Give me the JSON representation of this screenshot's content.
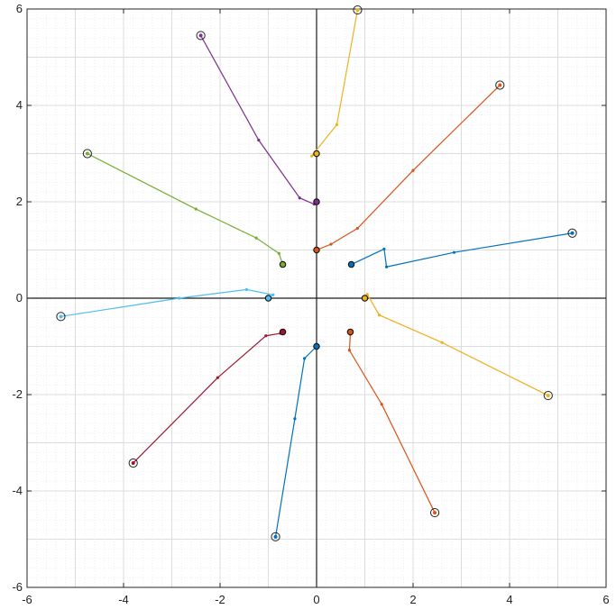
{
  "chart_data": {
    "type": "line",
    "title": "",
    "xlabel": "",
    "ylabel": "",
    "xlim": [
      -6,
      6
    ],
    "ylim": [
      -6,
      6
    ],
    "grid": "on-with-minor",
    "axis_lines_through_origin": true,
    "xticks": [
      "-6",
      "-4",
      "-2",
      "0",
      "2",
      "4",
      "6"
    ],
    "yticks": [
      "-6",
      "-4",
      "-2",
      "0",
      "2",
      "4",
      "6"
    ],
    "series": [
      {
        "color": "#0072BD",
        "points": [
          [
            0.72,
            0.7
          ],
          [
            1.4,
            1.02
          ],
          [
            1.45,
            0.65
          ],
          [
            2.85,
            0.95
          ],
          [
            5.3,
            1.35
          ]
        ]
      },
      {
        "color": "#D95319",
        "points": [
          [
            0.0,
            1.0
          ],
          [
            0.3,
            1.12
          ],
          [
            0.85,
            1.45
          ],
          [
            2.0,
            2.65
          ],
          [
            3.8,
            4.42
          ]
        ]
      },
      {
        "color": "#EDB120",
        "points": [
          [
            0.0,
            3.0
          ],
          [
            -0.1,
            2.95
          ],
          [
            0.42,
            3.6
          ],
          [
            0.85,
            5.98
          ]
        ]
      },
      {
        "color": "#7E2F8E",
        "points": [
          [
            0.0,
            2.0
          ],
          [
            -0.05,
            1.95
          ],
          [
            -0.35,
            2.08
          ],
          [
            -1.2,
            3.28
          ],
          [
            -2.4,
            5.45
          ]
        ]
      },
      {
        "color": "#77AC30",
        "points": [
          [
            -0.7,
            0.7
          ],
          [
            -0.78,
            0.93
          ],
          [
            -1.25,
            1.25
          ],
          [
            -2.5,
            1.85
          ],
          [
            -4.75,
            3.0
          ]
        ]
      },
      {
        "color": "#4DBEEE",
        "points": [
          [
            -1.0,
            0.0
          ],
          [
            -0.9,
            0.07
          ],
          [
            -1.45,
            0.18
          ],
          [
            -2.85,
            0.0
          ],
          [
            -5.3,
            -0.38
          ]
        ]
      },
      {
        "color": "#A2142F",
        "points": [
          [
            -0.7,
            -0.7
          ],
          [
            -0.75,
            -0.73
          ],
          [
            -1.05,
            -0.78
          ],
          [
            -2.05,
            -1.65
          ],
          [
            -3.8,
            -3.42
          ]
        ]
      },
      {
        "color": "#0072BD",
        "points": [
          [
            0.0,
            -1.0
          ],
          [
            -0.25,
            -1.25
          ],
          [
            -0.45,
            -2.5
          ],
          [
            -0.85,
            -4.95
          ]
        ]
      },
      {
        "color": "#D95319",
        "points": [
          [
            0.7,
            -0.7
          ],
          [
            0.7,
            -0.75
          ],
          [
            0.68,
            -1.08
          ],
          [
            1.35,
            -2.2
          ],
          [
            2.45,
            -4.45
          ]
        ]
      },
      {
        "color": "#EDB120",
        "points": [
          [
            1.0,
            0.0
          ],
          [
            1.05,
            0.08
          ],
          [
            1.3,
            -0.35
          ],
          [
            2.6,
            -0.92
          ],
          [
            4.8,
            -2.02
          ]
        ]
      }
    ]
  }
}
